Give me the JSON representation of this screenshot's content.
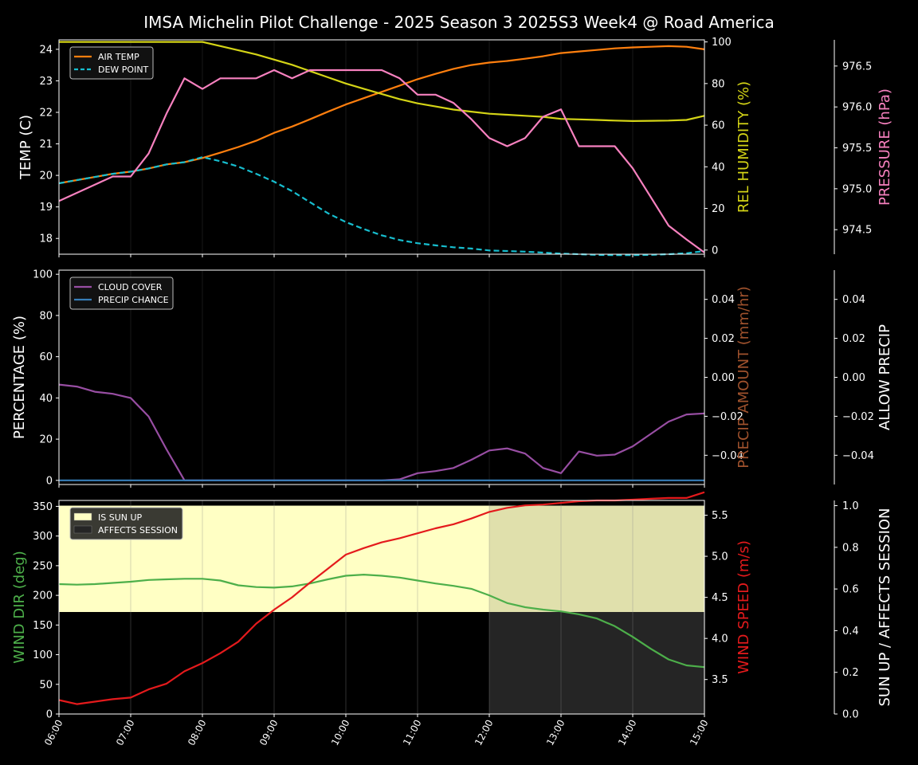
{
  "title": "IMSA Michelin Pilot Challenge - 2025 Season 3 2025S3 Week4 @ Road America",
  "x_ticks": [
    "06:00",
    "07:00",
    "08:00",
    "09:00",
    "10:00",
    "11:00",
    "12:00",
    "13:00",
    "14:00",
    "15:00"
  ],
  "chart_data": [
    {
      "type": "line",
      "x_hours": [
        6.0,
        6.25,
        6.5,
        6.75,
        7.0,
        7.25,
        7.5,
        7.75,
        8.0,
        8.25,
        8.5,
        8.75,
        9.0,
        9.25,
        9.5,
        9.75,
        10.0,
        10.25,
        10.5,
        10.75,
        11.0,
        11.25,
        11.5,
        11.75,
        12.0,
        12.25,
        12.5,
        12.75,
        13.0,
        13.25,
        13.5,
        13.75,
        14.0,
        14.25,
        14.5,
        14.75,
        15.0
      ],
      "left_axis": {
        "label": "TEMP (C)",
        "ylim": [
          17.5,
          24.3
        ],
        "ticks": [
          18,
          19,
          20,
          21,
          22,
          23,
          24
        ]
      },
      "right_axis_1": {
        "label": "REL HUMIDITY (%)",
        "ylim": [
          -2,
          101
        ],
        "ticks": [
          0,
          20,
          40,
          60,
          80,
          100
        ]
      },
      "right_axis_2": {
        "label": "PRESSURE (hPa)",
        "ylim": [
          974.2,
          976.82
        ],
        "ticks": [
          "974.5",
          "975.0",
          "975.5",
          "976.0",
          "976.5"
        ]
      },
      "series": [
        {
          "name": "AIR TEMP",
          "axis": "left",
          "color": "#ff7f0e",
          "dash": false,
          "values": [
            19.75,
            19.85,
            19.95,
            20.05,
            20.12,
            20.22,
            20.35,
            20.42,
            20.55,
            20.72,
            20.9,
            21.1,
            21.35,
            21.55,
            21.78,
            22.02,
            22.25,
            22.45,
            22.65,
            22.85,
            23.05,
            23.22,
            23.38,
            23.5,
            23.58,
            23.63,
            23.7,
            23.78,
            23.88,
            23.93,
            23.98,
            24.03,
            24.06,
            24.08,
            24.1,
            24.08,
            24.0
          ]
        },
        {
          "name": "DEW POINT",
          "axis": "left",
          "color": "#17becf",
          "dash": true,
          "values": [
            19.75,
            19.85,
            19.95,
            20.05,
            20.12,
            20.22,
            20.35,
            20.42,
            20.58,
            20.45,
            20.28,
            20.05,
            19.8,
            19.5,
            19.15,
            18.8,
            18.52,
            18.3,
            18.1,
            17.95,
            17.85,
            17.78,
            17.72,
            17.68,
            17.62,
            17.6,
            17.58,
            17.55,
            17.52,
            17.5,
            17.48,
            17.47,
            17.47,
            17.48,
            17.5,
            17.53,
            17.6
          ]
        },
        {
          "name": "",
          "axis": "right_1",
          "color": "#d4d416",
          "dash": false,
          "values": [
            100,
            100,
            100,
            100,
            100,
            100,
            100,
            100,
            100,
            98,
            96,
            94,
            91.5,
            89,
            86,
            83,
            80,
            77.5,
            75,
            72.5,
            70.5,
            69,
            67.5,
            66.5,
            65.5,
            65,
            64.5,
            64,
            63,
            62.8,
            62.5,
            62.2,
            62,
            62.1,
            62.2,
            62.5,
            64.5
          ]
        },
        {
          "name": "",
          "axis": "right_2",
          "color": "#f781bf",
          "dash": false,
          "values": [
            974.85,
            974.95,
            975.05,
            975.15,
            975.15,
            975.43,
            975.92,
            976.35,
            976.22,
            976.35,
            976.35,
            976.35,
            976.45,
            976.35,
            976.45,
            976.45,
            976.45,
            976.45,
            976.45,
            976.35,
            976.15,
            976.15,
            976.05,
            975.85,
            975.62,
            975.52,
            975.62,
            975.88,
            975.97,
            975.52,
            975.52,
            975.52,
            975.25,
            974.9,
            974.55,
            974.38,
            974.22
          ]
        }
      ],
      "legend": {
        "placement": "top-left",
        "entries": [
          "AIR TEMP",
          "DEW POINT"
        ]
      }
    },
    {
      "type": "line",
      "left_axis": {
        "label": "PERCENTAGE (%)",
        "ylim": [
          -2,
          102
        ],
        "ticks": [
          0,
          20,
          40,
          60,
          80,
          100
        ]
      },
      "right_axis_1": {
        "label": "PRECIP AMOUNT (mm/hr)",
        "ylim": [
          -0.055,
          0.055
        ],
        "ticks": [
          "−0.04",
          "−0.02",
          "0.00",
          "0.02",
          "0.04"
        ]
      },
      "right_axis_2": {
        "label": "ALLOW PRECIP",
        "ylim": [
          -0.055,
          0.055
        ],
        "ticks": [
          "−0.04",
          "−0.02",
          "0.00",
          "0.02",
          "0.04"
        ]
      },
      "series": [
        {
          "name": "CLOUD COVER",
          "axis": "left",
          "color": "#984ea3",
          "values": [
            46.5,
            45.5,
            43.0,
            42.0,
            40.0,
            31.0,
            15.0,
            0,
            0,
            0,
            0,
            0,
            0,
            0,
            0,
            0,
            0,
            0,
            0,
            0.5,
            3.5,
            4.5,
            6.0,
            10.0,
            14.5,
            15.5,
            13.0,
            6.0,
            3.5,
            14.0,
            12.0,
            12.5,
            16.5,
            22.5,
            28.5,
            32.0,
            32.5
          ]
        },
        {
          "name": "PRECIP CHANCE",
          "axis": "left",
          "color": "#377eb8",
          "values": [
            0,
            0,
            0,
            0,
            0,
            0,
            0,
            0,
            0,
            0,
            0,
            0,
            0,
            0,
            0,
            0,
            0,
            0,
            0,
            0,
            0,
            0,
            0,
            0,
            0,
            0,
            0,
            0,
            0,
            0,
            0,
            0,
            0,
            0,
            0,
            0,
            0
          ]
        }
      ],
      "legend": {
        "placement": "top-left",
        "entries": [
          "CLOUD COVER",
          "PRECIP CHANCE"
        ]
      }
    },
    {
      "type": "line",
      "left_axis": {
        "label": "WIND DIR (deg)",
        "ylim": [
          0,
          360
        ],
        "ticks": [
          0,
          50,
          100,
          150,
          200,
          250,
          300,
          350
        ]
      },
      "right_axis_1": {
        "label": "WIND SPEED (m/s)",
        "ylim": [
          3.08,
          5.68
        ],
        "ticks": [
          "3.5",
          "4.0",
          "4.5",
          "5.0",
          "5.5"
        ]
      },
      "right_axis_2": {
        "label": "SUN UP / AFFECTS SESSION",
        "ylim": [
          0,
          1.025
        ],
        "ticks": [
          "0.0",
          "0.2",
          "0.4",
          "0.6",
          "0.8",
          "1.0"
        ]
      },
      "is_sun_up": {
        "from_hour": 6.0,
        "to_hour": 15.0,
        "value": 1
      },
      "sun_band": {
        "color": "#ffffc4"
      },
      "affects_session": {
        "from_hour": 12.0,
        "to_hour": 15.0,
        "value": 1
      },
      "series": [
        {
          "name": "",
          "axis": "left",
          "color": "#4daf4a",
          "values": [
            219,
            218,
            219,
            221,
            223,
            226,
            227,
            228,
            228,
            225,
            217,
            214,
            213,
            215,
            220,
            227,
            233,
            235,
            233,
            230,
            225,
            220,
            216,
            211,
            200,
            187,
            180,
            176,
            173,
            168,
            161,
            148,
            130,
            110,
            92,
            82,
            79
          ]
        },
        {
          "name": "",
          "axis": "right_1",
          "color": "#e41a1c",
          "values": [
            3.25,
            3.2,
            3.23,
            3.26,
            3.28,
            3.38,
            3.45,
            3.6,
            3.7,
            3.82,
            3.96,
            4.18,
            4.35,
            4.5,
            4.68,
            4.85,
            5.02,
            5.1,
            5.17,
            5.22,
            5.28,
            5.34,
            5.39,
            5.46,
            5.54,
            5.59,
            5.62,
            5.63,
            5.65,
            5.67,
            5.68,
            5.68,
            5.69,
            5.7,
            5.71,
            5.71,
            5.78
          ]
        }
      ],
      "legend": {
        "placement": "top-left",
        "entries": [
          "IS SUN UP",
          "AFFECTS SESSION"
        ]
      }
    }
  ]
}
